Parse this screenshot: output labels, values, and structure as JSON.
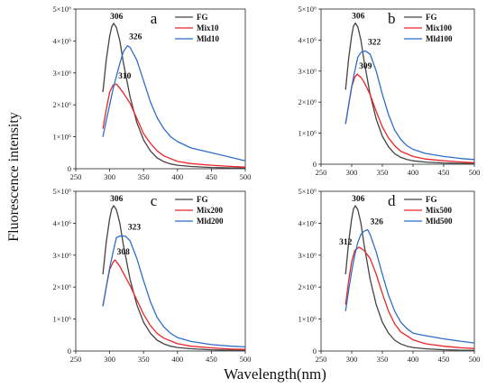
{
  "figure": {
    "xlabel": "Wavelength(nm)",
    "ylabel": "Fluorescence intensity"
  },
  "chart_data": [
    {
      "type": "line",
      "panel_label": "a",
      "xlim": [
        250,
        500
      ],
      "ylim": [
        0,
        5000000
      ],
      "x_ticks": [
        "250",
        "300",
        "350",
        "400",
        "450",
        "500"
      ],
      "y_ticks": [
        "0",
        "1×10⁶",
        "2×10⁶",
        "3×10⁶",
        "4×10⁶",
        "5×10⁶"
      ],
      "legend_position": "top-right",
      "series": [
        {
          "name": "FG",
          "color": "#444444",
          "x": [
            290,
            295,
            300,
            303,
            306,
            310,
            315,
            320,
            330,
            340,
            350,
            360,
            370,
            380,
            390,
            400,
            420,
            450,
            480,
            500
          ],
          "y": [
            2400000,
            3400000,
            4150000,
            4450000,
            4550000,
            4420000,
            4000000,
            3350000,
            2250000,
            1450000,
            900000,
            560000,
            340000,
            220000,
            150000,
            110000,
            70000,
            40000,
            25000,
            20000
          ]
        },
        {
          "name": "Mix10",
          "color": "#e8262a",
          "x": [
            290,
            295,
            300,
            305,
            310,
            315,
            320,
            330,
            340,
            350,
            360,
            370,
            380,
            400,
            420,
            450,
            480,
            500
          ],
          "y": [
            1250000,
            1850000,
            2400000,
            2620000,
            2650000,
            2520000,
            2380000,
            2050000,
            1580000,
            1100000,
            800000,
            560000,
            400000,
            230000,
            160000,
            110000,
            70000,
            50000
          ]
        },
        {
          "name": "Mld10",
          "color": "#2f6ec8",
          "x": [
            290,
            295,
            300,
            305,
            310,
            315,
            320,
            326,
            330,
            340,
            350,
            360,
            370,
            380,
            390,
            400,
            420,
            450,
            480,
            500
          ],
          "y": [
            1000000,
            1500000,
            2000000,
            2500000,
            2900000,
            3300000,
            3650000,
            3850000,
            3800000,
            3400000,
            2750000,
            2100000,
            1600000,
            1250000,
            1000000,
            850000,
            650000,
            500000,
            350000,
            250000
          ]
        }
      ],
      "annotations": [
        {
          "text": "306",
          "x": 306,
          "y": 4550000,
          "dx": -4,
          "dy": -5
        },
        {
          "text": "326",
          "x": 326,
          "y": 3850000,
          "dx": 2,
          "dy": -7
        },
        {
          "text": "310",
          "x": 310,
          "y": 2650000,
          "dx": 2,
          "dy": -6
        }
      ]
    },
    {
      "type": "line",
      "panel_label": "b",
      "xlim": [
        250,
        500
      ],
      "ylim": [
        0,
        5000000
      ],
      "x_ticks": [
        "250",
        "300",
        "350",
        "400",
        "450",
        "500"
      ],
      "y_ticks": [
        "0",
        "1×10⁶",
        "2×10⁶",
        "3×10⁶",
        "4×10⁶",
        "5×10⁶"
      ],
      "legend_position": "top-right",
      "series": [
        {
          "name": "FG",
          "color": "#444444",
          "x": [
            290,
            295,
            300,
            303,
            306,
            310,
            315,
            320,
            330,
            340,
            350,
            360,
            370,
            380,
            390,
            400,
            420,
            450,
            480,
            500
          ],
          "y": [
            2400000,
            3400000,
            4150000,
            4450000,
            4550000,
            4420000,
            4000000,
            3350000,
            2250000,
            1450000,
            900000,
            560000,
            340000,
            220000,
            150000,
            110000,
            70000,
            40000,
            25000,
            20000
          ]
        },
        {
          "name": "Mix100",
          "color": "#e8262a",
          "x": [
            290,
            295,
            300,
            305,
            309,
            315,
            320,
            330,
            340,
            350,
            360,
            370,
            380,
            400,
            420,
            450,
            480,
            500
          ],
          "y": [
            1300000,
            1900000,
            2500000,
            2800000,
            2900000,
            2800000,
            2650000,
            2250000,
            1700000,
            1200000,
            850000,
            600000,
            420000,
            250000,
            170000,
            110000,
            70000,
            50000
          ]
        },
        {
          "name": "Mld100",
          "color": "#2f6ec8",
          "x": [
            290,
            295,
            300,
            305,
            310,
            315,
            322,
            330,
            340,
            350,
            360,
            370,
            380,
            390,
            400,
            420,
            450,
            480,
            500
          ],
          "y": [
            1300000,
            1900000,
            2500000,
            3000000,
            3450000,
            3600000,
            3650000,
            3550000,
            3000000,
            2250000,
            1600000,
            1100000,
            800000,
            600000,
            480000,
            350000,
            250000,
            180000,
            150000
          ]
        }
      ],
      "annotations": [
        {
          "text": "306",
          "x": 306,
          "y": 4550000,
          "dx": -4,
          "dy": -5
        },
        {
          "text": "322",
          "x": 322,
          "y": 3650000,
          "dx": 3,
          "dy": -7
        },
        {
          "text": "309",
          "x": 309,
          "y": 2900000,
          "dx": 2,
          "dy": -6
        }
      ]
    },
    {
      "type": "line",
      "panel_label": "c",
      "xlim": [
        250,
        500
      ],
      "ylim": [
        0,
        5000000
      ],
      "x_ticks": [
        "250",
        "300",
        "350",
        "400",
        "450",
        "500"
      ],
      "y_ticks": [
        "0",
        "1×10⁶",
        "2×10⁶",
        "3×10⁶",
        "4×10⁶",
        "5×10⁶"
      ],
      "legend_position": "top-right",
      "series": [
        {
          "name": "FG",
          "color": "#444444",
          "x": [
            290,
            295,
            300,
            303,
            306,
            310,
            315,
            320,
            330,
            340,
            350,
            360,
            370,
            380,
            390,
            400,
            420,
            450,
            480,
            500
          ],
          "y": [
            2400000,
            3400000,
            4150000,
            4450000,
            4550000,
            4420000,
            4000000,
            3350000,
            2250000,
            1450000,
            900000,
            560000,
            340000,
            220000,
            150000,
            110000,
            70000,
            40000,
            25000,
            20000
          ]
        },
        {
          "name": "Mix200",
          "color": "#e8262a",
          "x": [
            290,
            295,
            300,
            305,
            308,
            315,
            320,
            330,
            340,
            350,
            360,
            370,
            380,
            400,
            420,
            450,
            480,
            500
          ],
          "y": [
            1400000,
            2000000,
            2550000,
            2780000,
            2850000,
            2650000,
            2450000,
            2050000,
            1600000,
            1150000,
            800000,
            550000,
            400000,
            230000,
            150000,
            100000,
            60000,
            50000
          ]
        },
        {
          "name": "Mld200",
          "color": "#2f6ec8",
          "x": [
            290,
            295,
            300,
            305,
            310,
            315,
            320,
            323,
            330,
            340,
            350,
            360,
            370,
            380,
            390,
            400,
            420,
            450,
            480,
            500
          ],
          "y": [
            1400000,
            2000000,
            2600000,
            3100000,
            3550000,
            3600000,
            3600000,
            3600000,
            3450000,
            2900000,
            2200000,
            1550000,
            1050000,
            750000,
            550000,
            420000,
            300000,
            200000,
            150000,
            130000
          ]
        }
      ],
      "annotations": [
        {
          "text": "306",
          "x": 306,
          "y": 4550000,
          "dx": -4,
          "dy": -5
        },
        {
          "text": "323",
          "x": 323,
          "y": 3600000,
          "dx": 3,
          "dy": -7
        },
        {
          "text": "308",
          "x": 308,
          "y": 2850000,
          "dx": 2,
          "dy": -6
        }
      ]
    },
    {
      "type": "line",
      "panel_label": "d",
      "xlim": [
        250,
        500
      ],
      "ylim": [
        0,
        5000000
      ],
      "x_ticks": [
        "250",
        "300",
        "350",
        "400",
        "450",
        "500"
      ],
      "y_ticks": [
        "0",
        "1×10⁶",
        "2×10⁶",
        "3×10⁶",
        "4×10⁶",
        "5×10⁶"
      ],
      "legend_position": "top-right",
      "series": [
        {
          "name": "FG",
          "color": "#444444",
          "x": [
            290,
            295,
            300,
            303,
            306,
            310,
            315,
            320,
            330,
            340,
            350,
            360,
            370,
            380,
            390,
            400,
            420,
            450,
            480,
            500
          ],
          "y": [
            2400000,
            3400000,
            4150000,
            4450000,
            4550000,
            4420000,
            4000000,
            3350000,
            2250000,
            1450000,
            900000,
            560000,
            340000,
            220000,
            150000,
            110000,
            70000,
            40000,
            25000,
            20000
          ]
        },
        {
          "name": "Mix500",
          "color": "#e8262a",
          "x": [
            290,
            295,
            300,
            305,
            312,
            320,
            330,
            340,
            350,
            360,
            370,
            380,
            400,
            420,
            450,
            480,
            500
          ],
          "y": [
            1450000,
            2200000,
            2800000,
            3150000,
            3250000,
            3150000,
            2900000,
            2400000,
            1800000,
            1250000,
            850000,
            600000,
            350000,
            230000,
            150000,
            100000,
            80000
          ]
        },
        {
          "name": "Mld500",
          "color": "#2f6ec8",
          "x": [
            290,
            295,
            300,
            305,
            310,
            315,
            320,
            326,
            330,
            340,
            350,
            360,
            370,
            380,
            390,
            400,
            420,
            450,
            480,
            500
          ],
          "y": [
            1250000,
            1900000,
            2500000,
            3000000,
            3400000,
            3650000,
            3750000,
            3800000,
            3650000,
            3100000,
            2400000,
            1750000,
            1250000,
            900000,
            700000,
            560000,
            480000,
            380000,
            300000,
            250000
          ]
        }
      ],
      "annotations": [
        {
          "text": "306",
          "x": 306,
          "y": 4550000,
          "dx": -4,
          "dy": -5
        },
        {
          "text": "326",
          "x": 326,
          "y": 3800000,
          "dx": 3,
          "dy": -6
        },
        {
          "text": "312",
          "x": 312,
          "y": 3250000,
          "dx": -22,
          "dy": -3
        }
      ]
    }
  ]
}
